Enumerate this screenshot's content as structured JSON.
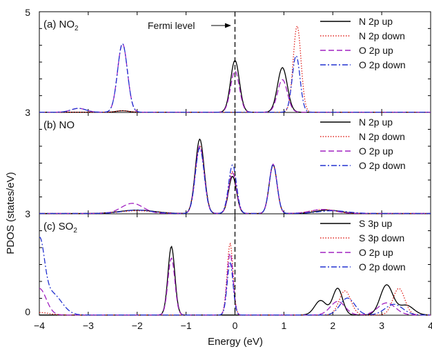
{
  "figure": {
    "ylabel": "PDOS (states/eV)",
    "xlabel": "Energy (eV)",
    "fermi_label": "Fermi level",
    "x_ticks": [
      "−4",
      "−3",
      "−2",
      "−1",
      "0",
      "1",
      "2",
      "3",
      "4"
    ],
    "y_tick_labels": [
      "5",
      "3",
      "3",
      "0"
    ]
  },
  "chart_data": [
    {
      "type": "line",
      "panel_label": "(a) NO",
      "panel_label_sub": "2",
      "xlim": [
        -4,
        4
      ],
      "series": [
        {
          "name": "N 2p up",
          "color": "#000000",
          "dash": "solid",
          "peaks": [
            [
              -2.3,
              0.03,
              0.12
            ],
            [
              0.0,
              1.08,
              0.09
            ],
            [
              0.97,
              0.93,
              0.1
            ]
          ]
        },
        {
          "name": "N 2p down",
          "color": "#e0201b",
          "dash": "dotted",
          "peaks": [
            [
              -2.3,
              0.03,
              0.12
            ],
            [
              1.27,
              1.8,
              0.08
            ]
          ]
        },
        {
          "name": "O 2p up",
          "color": "#a020c0",
          "dash": "dashed",
          "peaks": [
            [
              -3.2,
              0.08,
              0.15
            ],
            [
              -2.3,
              1.43,
              0.1
            ],
            [
              0.0,
              0.86,
              0.09
            ],
            [
              0.97,
              0.68,
              0.1
            ]
          ]
        },
        {
          "name": "O 2p down",
          "color": "#2030d0",
          "dash": "dashdot",
          "peaks": [
            [
              -3.2,
              0.08,
              0.15
            ],
            [
              -2.3,
              1.43,
              0.1
            ],
            [
              1.25,
              1.18,
              0.08
            ]
          ]
        }
      ]
    },
    {
      "type": "line",
      "panel_label": "(b) NO",
      "panel_label_sub": "",
      "xlim": [
        -4,
        4
      ],
      "series": [
        {
          "name": "N 2p up",
          "color": "#000000",
          "dash": "solid",
          "peaks": [
            [
              -2.0,
              0.05,
              0.35
            ],
            [
              -0.72,
              1.1,
              0.09
            ],
            [
              -0.05,
              0.55,
              0.08
            ],
            [
              0.78,
              0.72,
              0.08
            ],
            [
              1.9,
              0.05,
              0.25
            ]
          ]
        },
        {
          "name": "N 2p down",
          "color": "#e0201b",
          "dash": "dotted",
          "peaks": [
            [
              -2.0,
              0.04,
              0.35
            ],
            [
              -0.72,
              1.0,
              0.09
            ],
            [
              -0.05,
              0.62,
              0.08
            ],
            [
              0.78,
              0.72,
              0.08
            ],
            [
              1.8,
              0.06,
              0.25
            ]
          ]
        },
        {
          "name": "O 2p up",
          "color": "#a020c0",
          "dash": "dashed",
          "peaks": [
            [
              -2.1,
              0.15,
              0.22
            ],
            [
              -0.72,
              1.0,
              0.09
            ],
            [
              -0.05,
              0.6,
              0.08
            ],
            [
              0.78,
              0.73,
              0.08
            ],
            [
              1.8,
              0.06,
              0.25
            ]
          ]
        },
        {
          "name": "O 2p down",
          "color": "#2030d0",
          "dash": "dashdot",
          "peaks": [
            [
              -2.0,
              0.05,
              0.3
            ],
            [
              -0.72,
              0.97,
              0.09
            ],
            [
              -0.05,
              0.72,
              0.08
            ],
            [
              0.78,
              0.73,
              0.08
            ],
            [
              2.0,
              0.04,
              0.3
            ]
          ]
        }
      ]
    },
    {
      "type": "line",
      "panel_label": "(c) SO",
      "panel_label_sub": "2",
      "xlim": [
        -4,
        4
      ],
      "series": [
        {
          "name": "S 3p up",
          "color": "#000000",
          "dash": "solid",
          "peaks": [
            [
              -1.3,
              1.42,
              0.07
            ],
            [
              1.75,
              0.3,
              0.12
            ],
            [
              2.1,
              0.55,
              0.1
            ],
            [
              3.1,
              0.62,
              0.13
            ],
            [
              3.5,
              0.2,
              0.15
            ]
          ]
        },
        {
          "name": "S 3p down",
          "color": "#e0201b",
          "dash": "dotted",
          "peaks": [
            [
              -4.0,
              0.05,
              0.2
            ],
            [
              -0.1,
              1.48,
              0.06
            ],
            [
              2.25,
              0.5,
              0.12
            ],
            [
              3.35,
              0.55,
              0.12
            ]
          ]
        },
        {
          "name": "O 2p up",
          "color": "#a020c0",
          "dash": "dashed",
          "peaks": [
            [
              -4.0,
              0.55,
              0.14
            ],
            [
              -1.3,
              1.18,
              0.07
            ],
            [
              -0.1,
              1.28,
              0.06
            ],
            [
              2.1,
              0.28,
              0.15
            ],
            [
              3.1,
              0.25,
              0.18
            ]
          ]
        },
        {
          "name": "O 2p down",
          "color": "#2030d0",
          "dash": "dashdot",
          "peaks": [
            [
              -4.0,
              1.4,
              0.1
            ],
            [
              -3.75,
              0.45,
              0.2
            ],
            [
              -0.1,
              1.08,
              0.06
            ],
            [
              2.3,
              0.35,
              0.15
            ],
            [
              3.25,
              0.22,
              0.18
            ]
          ]
        }
      ]
    }
  ]
}
